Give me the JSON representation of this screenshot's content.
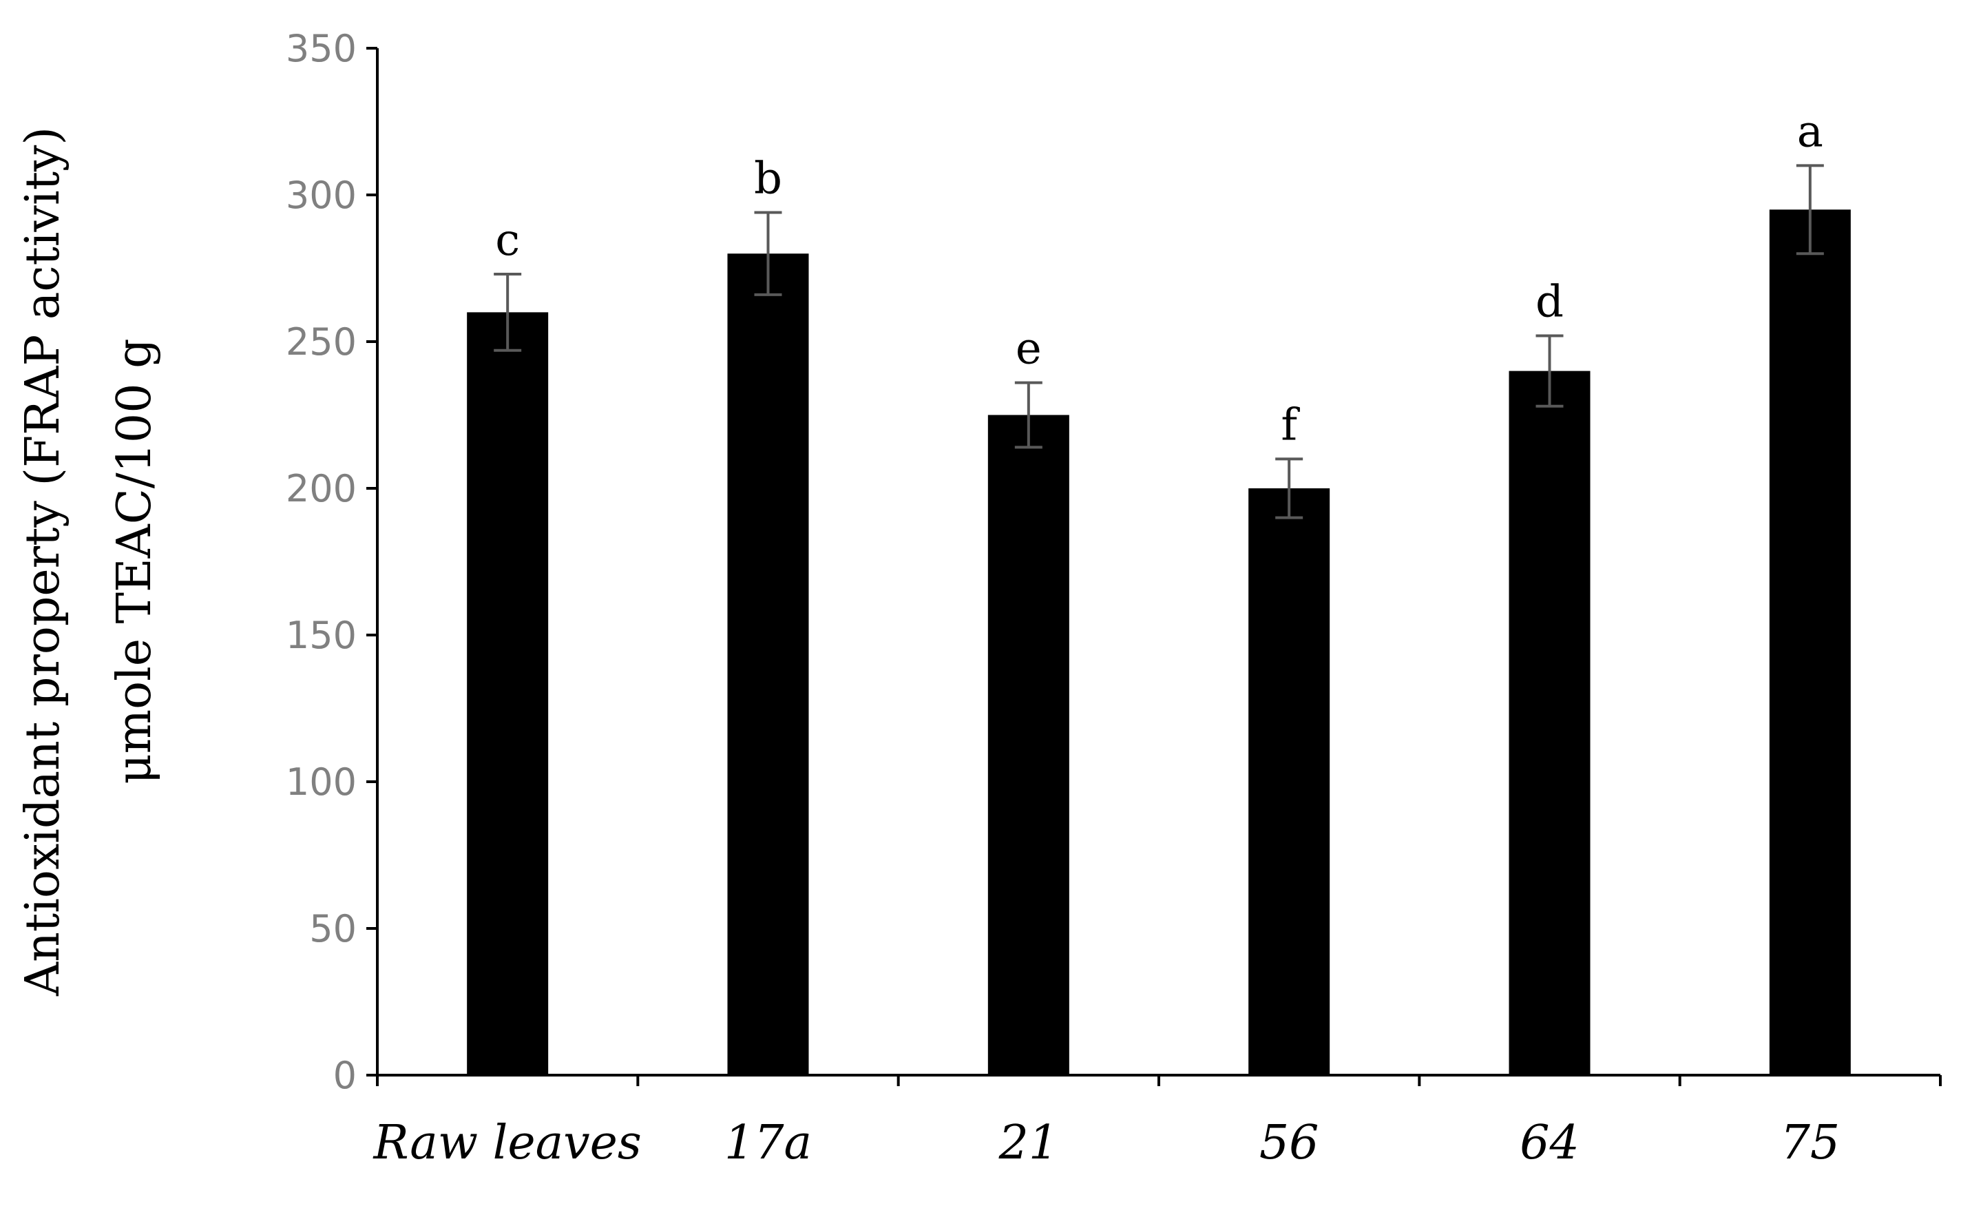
{
  "chart_data": {
    "type": "bar",
    "categories": [
      "Raw leaves",
      "17a",
      "21",
      "56",
      "64",
      "75"
    ],
    "values": [
      260,
      280,
      225,
      200,
      240,
      295
    ],
    "errors": [
      13,
      14,
      11,
      10,
      12,
      15
    ],
    "significance_letters": [
      "c",
      "b",
      "e",
      "f",
      "d",
      "a"
    ],
    "title": "",
    "xlabel": "",
    "ylabel": [
      "Antioxidant property (FRAP activity)",
      "μmole TEAC/100 g"
    ],
    "ylim": [
      0,
      350
    ],
    "yticks": [
      0,
      50,
      100,
      150,
      200,
      250,
      300,
      350
    ],
    "grid": false,
    "colors": {
      "bar": "#000000",
      "error_bar": "#595959",
      "axis": "#000000",
      "tick_label": "#808080"
    }
  }
}
